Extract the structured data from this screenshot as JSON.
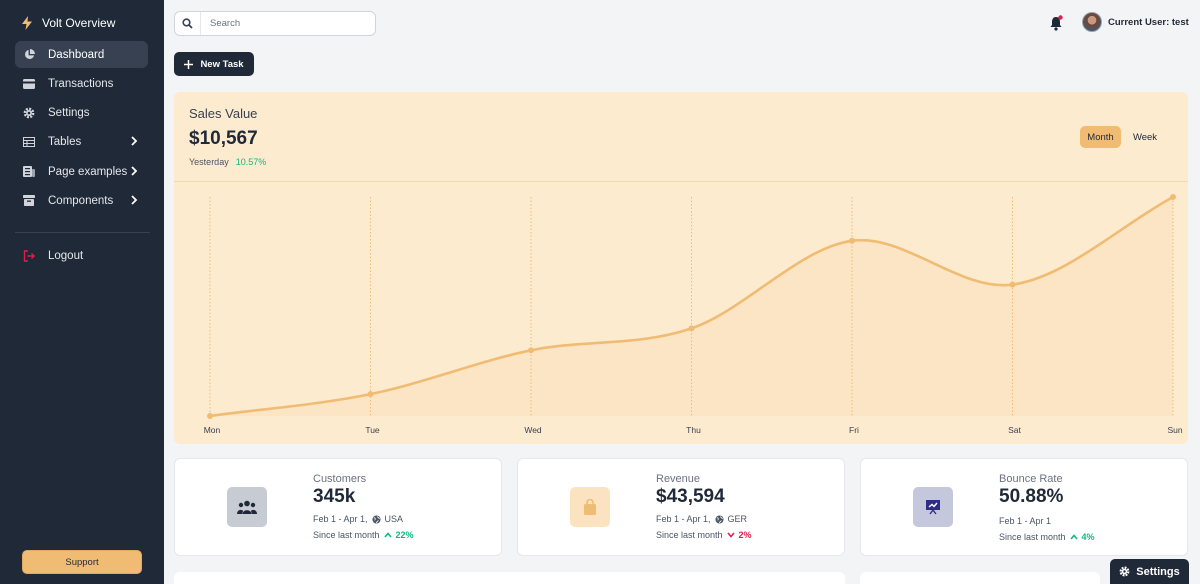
{
  "sidebar": {
    "brand": "Volt Overview",
    "items": [
      {
        "label": "Dashboard",
        "icon": "chart-pie-icon"
      },
      {
        "label": "Transactions",
        "icon": "credit-card-icon"
      },
      {
        "label": "Settings",
        "icon": "gear-icon"
      },
      {
        "label": "Tables",
        "icon": "table-icon"
      },
      {
        "label": "Page examples",
        "icon": "newspaper-icon"
      },
      {
        "label": "Components",
        "icon": "archive-icon"
      },
      {
        "label": "Logout",
        "icon": "logout-icon"
      }
    ],
    "support_label": "Support"
  },
  "search": {
    "placeholder": "Search"
  },
  "user": {
    "label": "Current User: test"
  },
  "new_task_label": "New Task",
  "sales": {
    "title": "Sales Value",
    "value": "$10,567",
    "yesterday_label": "Yesterday",
    "change": "10.57%",
    "toggle": {
      "month": "Month",
      "week": "Week"
    }
  },
  "chart_data": {
    "type": "line",
    "categories": [
      "Mon",
      "Tue",
      "Wed",
      "Thu",
      "Fri",
      "Sat",
      "Sun"
    ],
    "values": [
      0,
      10,
      30,
      40,
      80,
      60,
      100
    ],
    "ylim": [
      0,
      100
    ],
    "title": "",
    "xlabel": "",
    "ylabel": "",
    "grid": "vertical dotted",
    "color": "#f0bc74"
  },
  "stats": [
    {
      "label": "Customers",
      "value": "345k",
      "range": "Feb 1 - Apr 1,",
      "region": "USA",
      "since": "Since last month",
      "change": "22%",
      "trend": "up",
      "icon": "users-icon"
    },
    {
      "label": "Revenue",
      "value": "$43,594",
      "range": "Feb 1 - Apr 1,",
      "region": "GER",
      "since": "Since last month",
      "change": "2%",
      "trend": "down",
      "icon": "shopping-bag-icon"
    },
    {
      "label": "Bounce Rate",
      "value": "50.88%",
      "range": "Feb 1 - Apr 1",
      "region": "",
      "since": "Since last month",
      "change": "4%",
      "trend": "up",
      "icon": "presentation-chart-icon"
    }
  ],
  "settings_label": "Settings",
  "colors": {
    "sidebar": "#1f2937",
    "accent": "#f0bc74",
    "card_bg": "#fdebcf",
    "positive": "#10b981",
    "negative": "#e11d48"
  }
}
